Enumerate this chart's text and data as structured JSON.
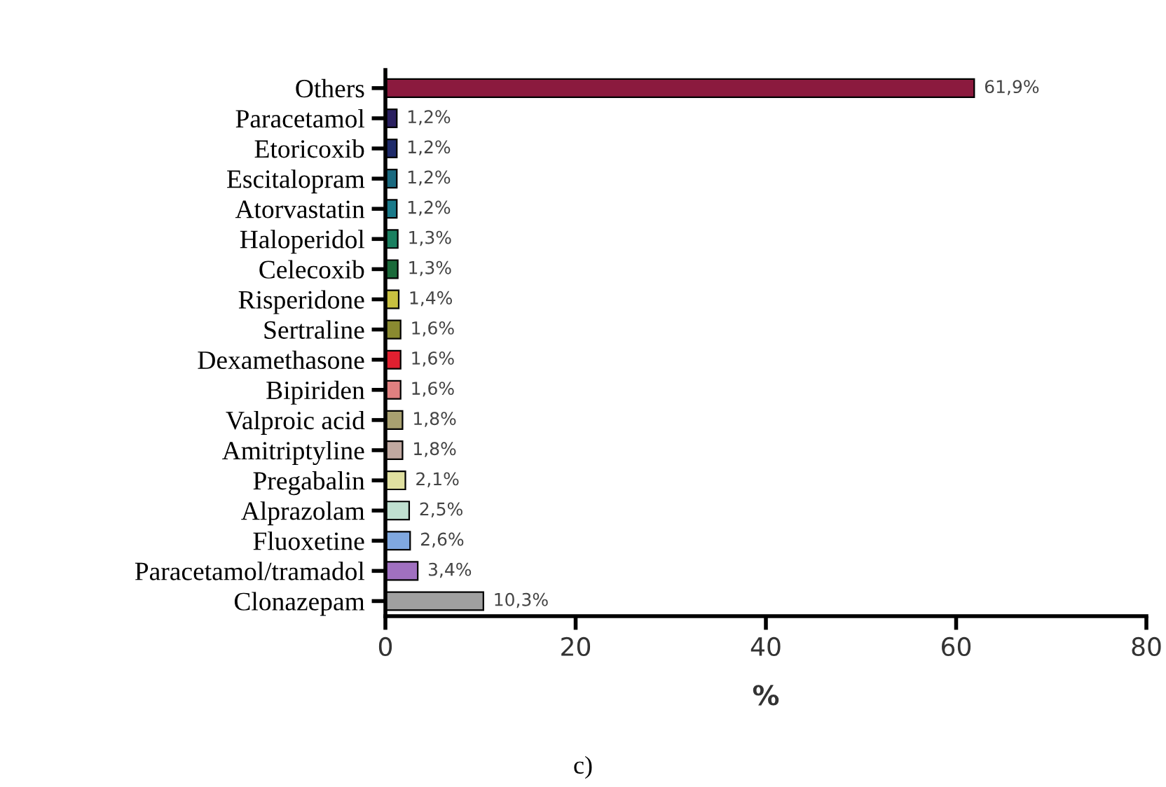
{
  "chart_data": {
    "type": "bar",
    "orientation": "horizontal",
    "xlabel": "%",
    "categories": [
      "Others",
      "Paracetamol",
      "Etoricoxib",
      "Escitalopram",
      "Atorvastatin",
      "Haloperidol",
      "Celecoxib",
      "Risperidone",
      "Sertraline",
      "Dexamethasone",
      "Bipiriden",
      "Valproic acid",
      "Amitriptyline",
      "Pregabalin",
      "Alprazolam",
      "Fluoxetine",
      "Paracetamol/tramadol",
      "Clonazepam"
    ],
    "values": [
      61.9,
      1.2,
      1.2,
      1.2,
      1.2,
      1.3,
      1.3,
      1.4,
      1.6,
      1.6,
      1.6,
      1.8,
      1.8,
      2.1,
      2.5,
      2.6,
      3.4,
      10.3
    ],
    "value_labels": [
      "61,9%",
      "1,2%",
      "1,2%",
      "1,2%",
      "1,2%",
      "1,3%",
      "1,3%",
      "1,4%",
      "1,6%",
      "1,6%",
      "1,6%",
      "1,8%",
      "1,8%",
      "2,1%",
      "2,5%",
      "2,6%",
      "3,4%",
      "10,3%"
    ],
    "colors": [
      "#8b1a3e",
      "#2a2060",
      "#1e2a6a",
      "#1a6a80",
      "#1a7a8a",
      "#1a8060",
      "#1a6a3a",
      "#c8c040",
      "#8a8a30",
      "#e02030",
      "#e08080",
      "#a8a070",
      "#c0a8a0",
      "#e0e0a0",
      "#c0e0d0",
      "#80a8e0",
      "#a070c0",
      "#a0a0a0"
    ],
    "xlim": [
      0,
      80
    ],
    "xticks": [
      0,
      20,
      40,
      60,
      80
    ],
    "grid": false,
    "legend": false,
    "annotations": [
      "c)"
    ]
  }
}
